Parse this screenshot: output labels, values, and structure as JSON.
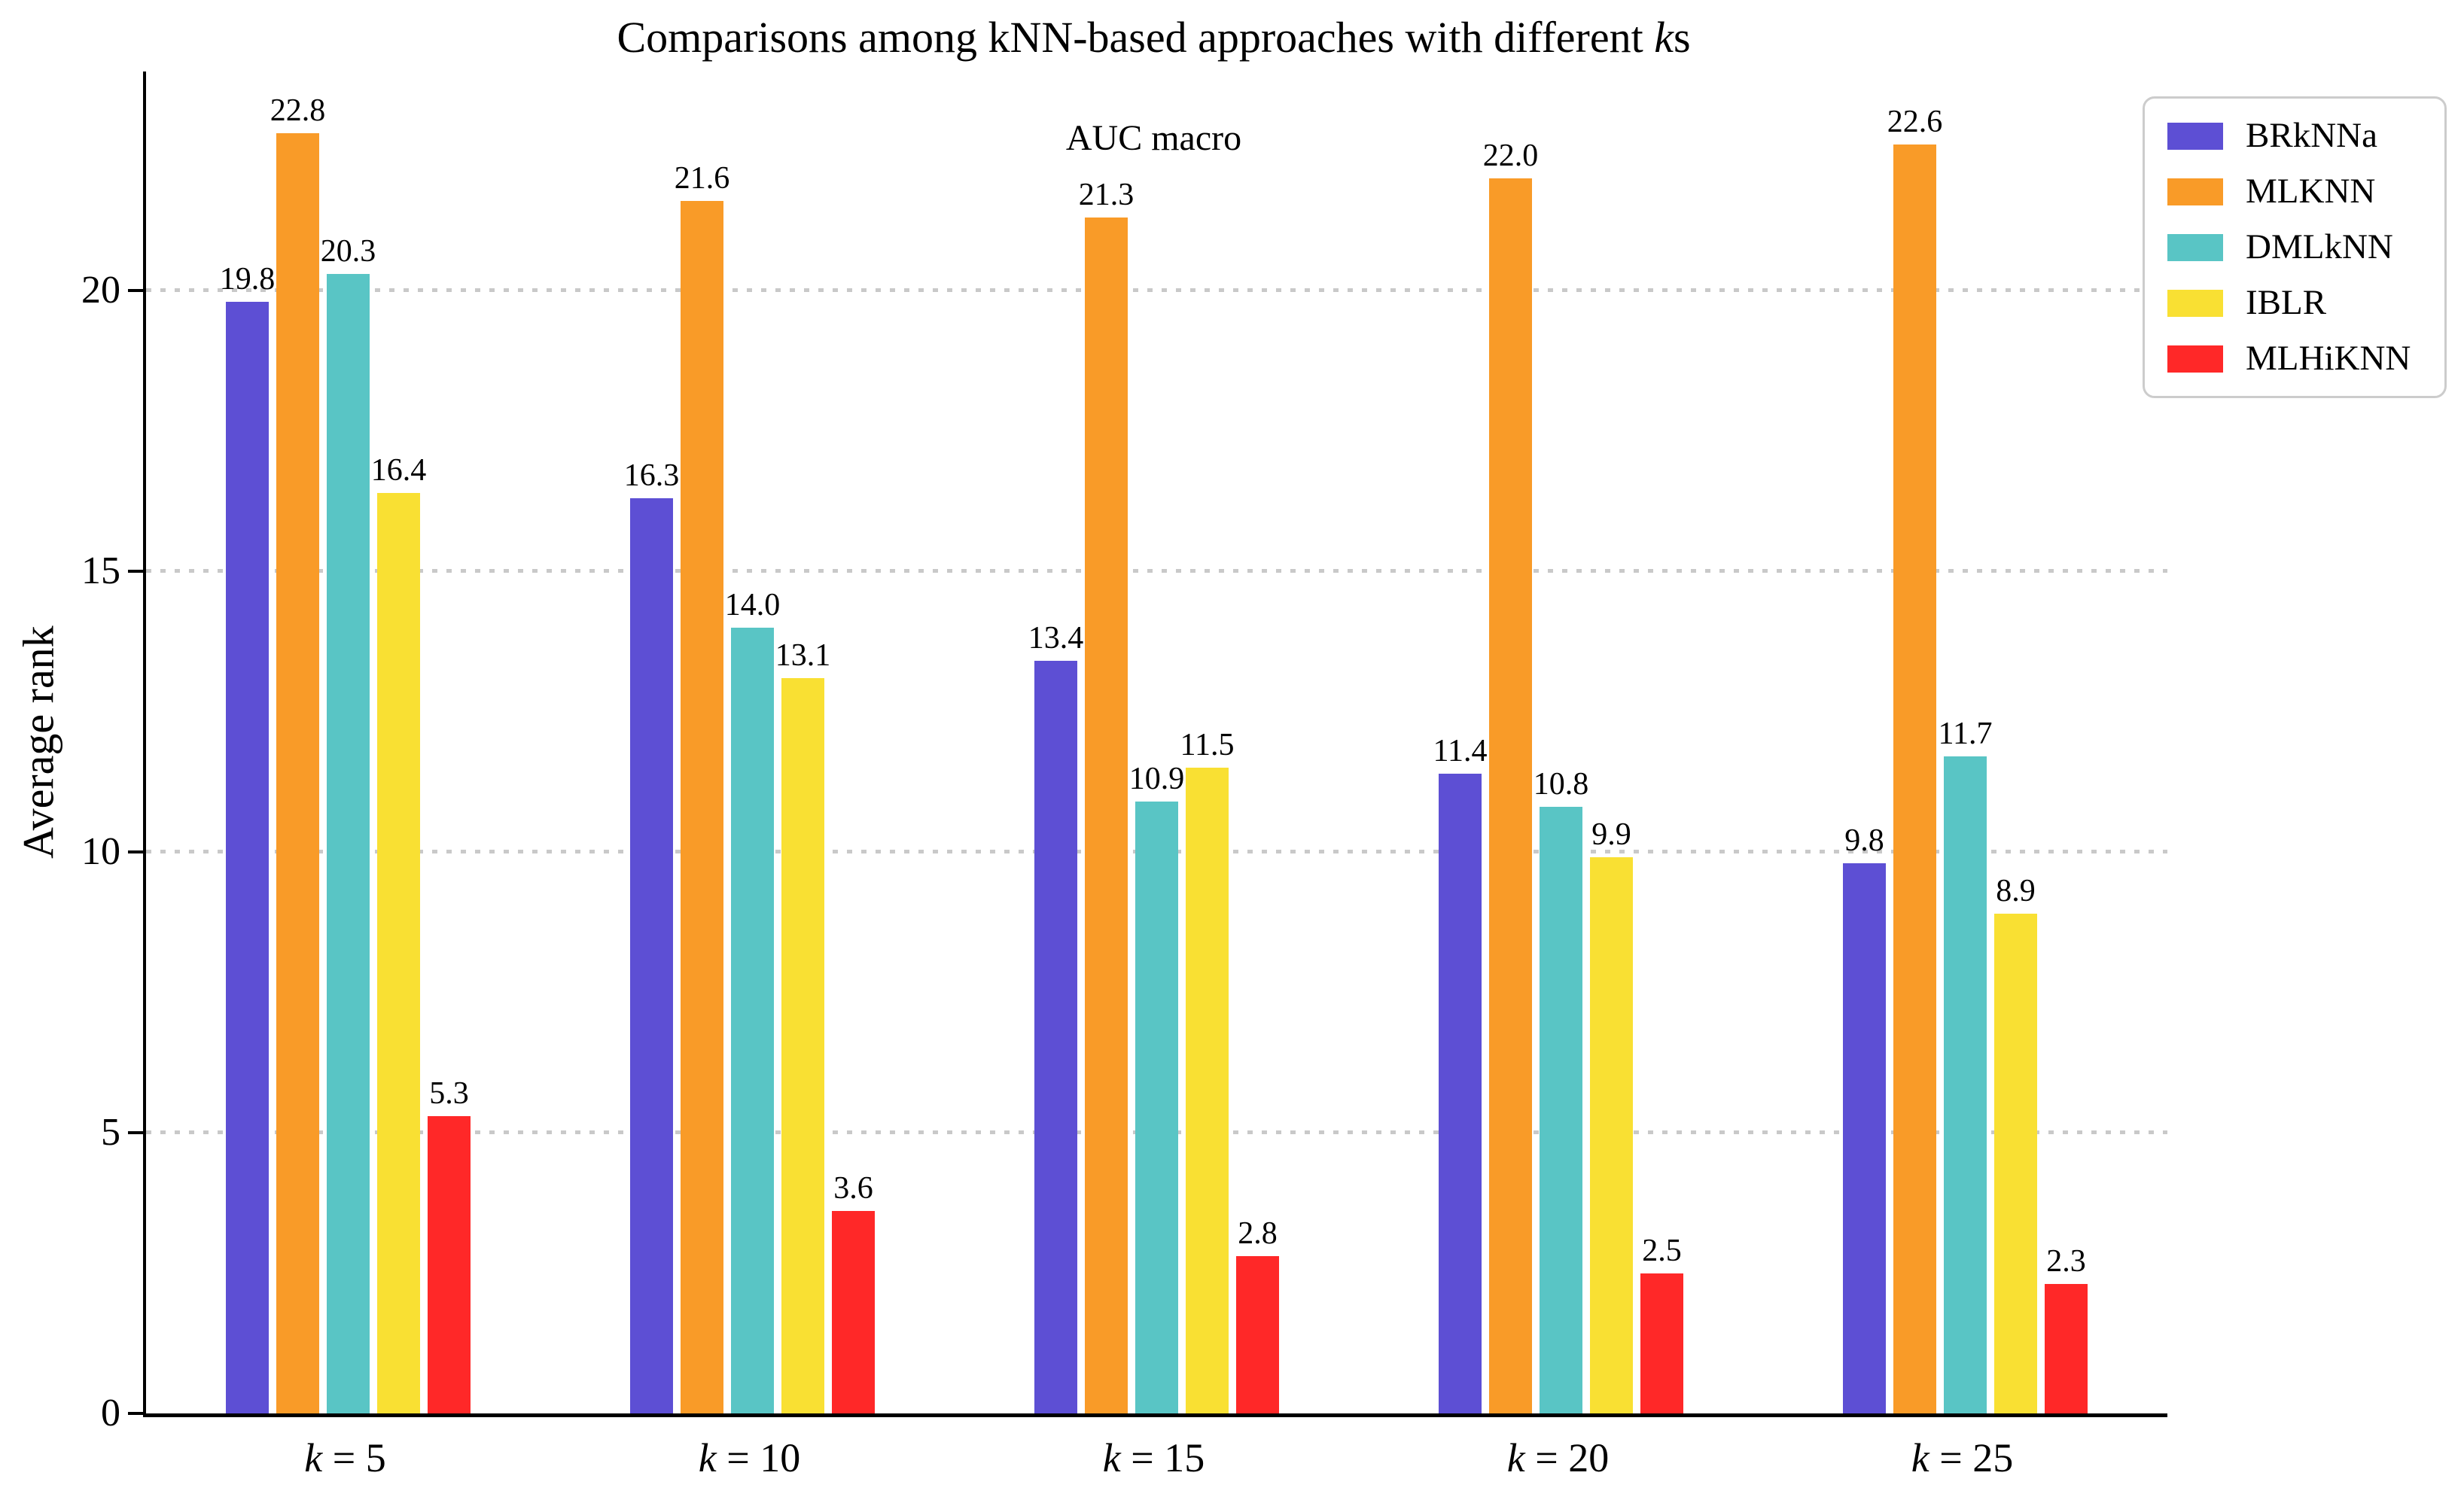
{
  "chart_data": {
    "type": "bar",
    "title": "Comparisons among kNN-based approaches with different ks",
    "title_render": {
      "pre": "Comparisons among kNN-based approaches with different ",
      "italic": "k",
      "post": "s"
    },
    "subtitle": "AUC macro",
    "xlabel": "",
    "ylabel": "Average rank",
    "categories": [
      "k = 5",
      "k = 10",
      "k = 15",
      "k = 20",
      "k = 25"
    ],
    "category_variable": "k",
    "ylim": [
      0,
      23.9
    ],
    "yticks": [
      0,
      5,
      10,
      15,
      20
    ],
    "grid": "horizontal dotted gray",
    "legend_position": "upper right",
    "bar_value_decimals": 1,
    "series": [
      {
        "name": "BRkNNa",
        "color": "#5d4fd4",
        "values": [
          19.8,
          16.3,
          13.4,
          11.4,
          9.8
        ]
      },
      {
        "name": "MLKNN",
        "color": "#f99b28",
        "values": [
          22.8,
          21.6,
          21.3,
          22.0,
          22.6
        ]
      },
      {
        "name": "DMLkNN",
        "color": "#59c5c5",
        "values": [
          20.3,
          14.0,
          10.9,
          10.8,
          11.7
        ]
      },
      {
        "name": "IBLR",
        "color": "#f9e033",
        "values": [
          16.4,
          13.1,
          11.5,
          9.9,
          8.9
        ]
      },
      {
        "name": "MLHiKNN",
        "color": "#ff2828",
        "values": [
          5.3,
          3.6,
          2.8,
          2.5,
          2.3
        ]
      }
    ]
  }
}
